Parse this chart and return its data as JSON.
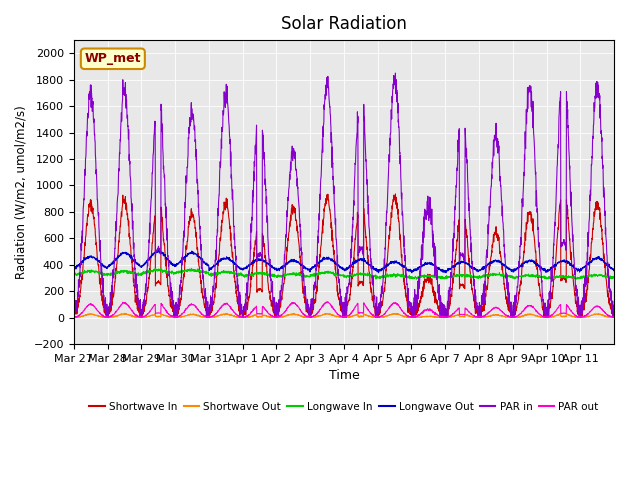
{
  "title": "Solar Radiation",
  "xlabel": "Time",
  "ylabel": "Radiation (W/m2, umol/m2/s)",
  "ylim": [
    -200,
    2100
  ],
  "yticks": [
    -200,
    0,
    200,
    400,
    600,
    800,
    1000,
    1200,
    1400,
    1600,
    1800,
    2000
  ],
  "x_labels": [
    "Mar 27",
    "Mar 28",
    "Mar 29",
    "Mar 30",
    "Mar 31",
    "Apr 1",
    "Apr 2",
    "Apr 3",
    "Apr 4",
    "Apr 5",
    "Apr 6",
    "Apr 7",
    "Apr 8",
    "Apr 9",
    "Apr 10",
    "Apr 11"
  ],
  "annotation": "WP_met",
  "colors": {
    "shortwave_in": "#cc0000",
    "shortwave_out": "#ff8800",
    "longwave_in": "#00cc00",
    "longwave_out": "#0000cc",
    "par_in": "#8800cc",
    "par_out": "#ff00cc"
  },
  "legend_labels": [
    "Shortwave In",
    "Shortwave Out",
    "Longwave In",
    "Longwave Out",
    "PAR in",
    "PAR out"
  ],
  "bg_color": "#e8e8e8",
  "num_days": 16,
  "shortwave_in_peaks": [
    860,
    880,
    900,
    790,
    870,
    720,
    830,
    900,
    890,
    910,
    300,
    820,
    650,
    790,
    1000,
    860
  ],
  "par_in_peaks": [
    1700,
    1710,
    1740,
    1560,
    1700,
    1610,
    1260,
    1760,
    1740,
    1800,
    840,
    1580,
    1390,
    1730,
    1920,
    1750
  ],
  "longwave_out_day": [
    460,
    490,
    500,
    490,
    450,
    440,
    430,
    450,
    440,
    420,
    410,
    420,
    430,
    430,
    430,
    450
  ],
  "longwave_out_night": [
    360,
    370,
    370,
    380,
    350,
    355,
    345,
    355,
    345,
    340,
    335,
    340,
    345,
    340,
    340,
    350
  ],
  "longwave_in_day": [
    350,
    350,
    360,
    360,
    345,
    335,
    330,
    340,
    330,
    320,
    315,
    320,
    325,
    320,
    310,
    320
  ],
  "longwave_in_night": [
    320,
    320,
    330,
    335,
    320,
    310,
    305,
    315,
    305,
    300,
    295,
    300,
    305,
    300,
    295,
    300
  ],
  "par_out_peaks": [
    100,
    110,
    115,
    100,
    105,
    95,
    110,
    115,
    120,
    110,
    60,
    80,
    75,
    90,
    110,
    85
  ]
}
